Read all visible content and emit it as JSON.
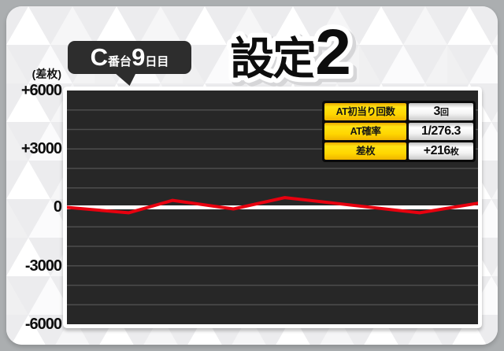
{
  "header": {
    "machine_label": {
      "unit": "C",
      "unit_small": "番台",
      "day": "9",
      "day_small": "日目"
    },
    "title": {
      "label": "設定",
      "number": "2"
    }
  },
  "axis": {
    "unit": "(差枚)",
    "ticks": [
      "+6000",
      "+3000",
      "0",
      "-3000",
      "-6000"
    ]
  },
  "stats_table": {
    "rows": [
      {
        "label": "AT初当り回数",
        "value": "3",
        "value_suffix": "回"
      },
      {
        "label": "AT確率",
        "value": "1/276.3",
        "value_suffix": ""
      },
      {
        "label": "差枚",
        "value": "+216",
        "value_suffix": "枚"
      }
    ]
  },
  "chart_data": {
    "type": "line",
    "title": "設定2",
    "subtitle": "C番台9日目",
    "ylabel": "(差枚)",
    "ylim": [
      -6000,
      6000
    ],
    "ytick_interval": 3000,
    "gridline_interval": 1000,
    "grid": true,
    "legend_position": "none",
    "final_diff_label": "+216枚",
    "points": [
      {
        "x": 0.0,
        "diff": 0
      },
      {
        "x": 0.15,
        "diff": -280
      },
      {
        "x": 0.257,
        "diff": 360
      },
      {
        "x": 0.405,
        "diff": -80
      },
      {
        "x": 0.53,
        "diff": 500
      },
      {
        "x": 0.858,
        "diff": -280
      },
      {
        "x": 1.0,
        "diff": 216
      }
    ],
    "colors": {
      "line": "#e8000f",
      "zero_line": "#ffffff",
      "plot_background": "#272727",
      "gridline": "#4d4d4d",
      "table_accent": "#ffd600"
    }
  }
}
